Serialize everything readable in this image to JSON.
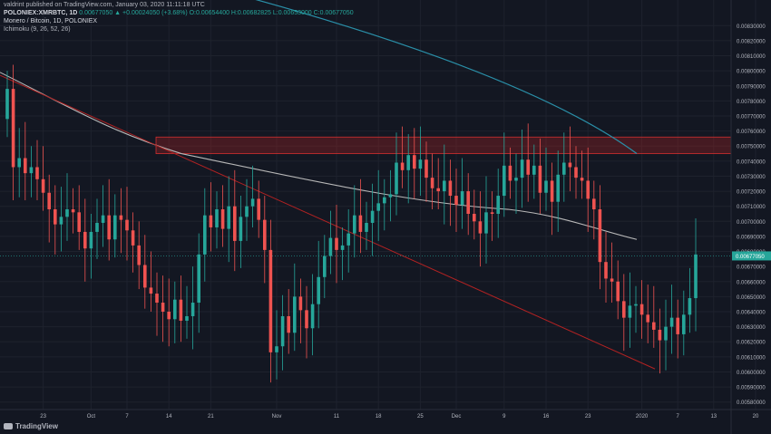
{
  "header": {
    "publish_line": "valdrint published on TradingView.com, January 03, 2020 11:11:18 UTC",
    "symbol_line": "POLONIEX:XMRBTC, 1D",
    "ohlc_line": "0.00677050  ▲ +0.00024050 (+3.68%)  O:0.00654400  H:0.00682825  L:0.00653000  C:0.00677050",
    "name_line": "Monero / Bitcoin, 1D, POLONIEX",
    "indicator_line": "Ichimoku (9, 26, 52, 26)"
  },
  "branding": {
    "logo_text": "TradingView"
  },
  "colors": {
    "background": "#131722",
    "grid": "#1e222d",
    "up": "#26a69a",
    "down": "#ef5350",
    "ma_long": "#2a8fa8",
    "ma_short": "#b8b8b8",
    "trendline": "#b22222",
    "zone_fill": "rgba(178,34,34,0.32)",
    "zone_border": "#d03030",
    "axis_text": "#b2b5be",
    "price_tag": "#26a69a"
  },
  "chart_data": {
    "type": "candlestick",
    "symbol": "POLONIEX:XMRBTC",
    "timeframe": "1D",
    "y_range": [
      0.00575,
      0.00835
    ],
    "y_ticks": [
      "0.00830000",
      "0.00820000",
      "0.00810000",
      "0.00800000",
      "0.00790000",
      "0.00780000",
      "0.00770000",
      "0.00760000",
      "0.00750000",
      "0.00740000",
      "0.00730000",
      "0.00720000",
      "0.00710000",
      "0.00700000",
      "0.00690000",
      "0.00680000",
      "0.00670000",
      "0.00660000",
      "0.00650000",
      "0.00640000",
      "0.00630000",
      "0.00620000",
      "0.00610000",
      "0.00600000",
      "0.00590000",
      "0.00580000"
    ],
    "x_ticks": [
      {
        "label": "23",
        "date": "2019-09-23"
      },
      {
        "label": "Oct",
        "date": "2019-10-01"
      },
      {
        "label": "7",
        "date": "2019-10-07"
      },
      {
        "label": "14",
        "date": "2019-10-14"
      },
      {
        "label": "21",
        "date": "2019-10-21"
      },
      {
        "label": "Nov",
        "date": "2019-11-01"
      },
      {
        "label": "11",
        "date": "2019-11-11"
      },
      {
        "label": "18",
        "date": "2019-11-18"
      },
      {
        "label": "25",
        "date": "2019-11-25"
      },
      {
        "label": "Dec",
        "date": "2019-12-01"
      },
      {
        "label": "9",
        "date": "2019-12-09"
      },
      {
        "label": "16",
        "date": "2019-12-16"
      },
      {
        "label": "23",
        "date": "2019-12-23"
      },
      {
        "label": "2020",
        "date": "2020-01-01"
      },
      {
        "label": "7",
        "date": "2020-01-07"
      },
      {
        "label": "13",
        "date": "2020-01-13"
      },
      {
        "label": "20",
        "date": "2020-01-20"
      }
    ],
    "last_price": "0.00677050",
    "current_price_tag": "0.00677050",
    "series_ohlc_close": [
      0.00788,
      0.00736,
      0.00742,
      0.00732,
      0.00736,
      0.00728,
      0.00719,
      0.00708,
      0.00698,
      0.00703,
      0.00708,
      0.00706,
      0.00693,
      0.00682,
      0.00693,
      0.00699,
      0.00704,
      0.00688,
      0.00704,
      0.00701,
      0.00694,
      0.00684,
      0.00671,
      0.00656,
      0.00652,
      0.00646,
      0.0064,
      0.00635,
      0.00648,
      0.00634,
      0.00637,
      0.00646,
      0.00678,
      0.00704,
      0.00696,
      0.00708,
      0.00695,
      0.0071,
      0.00687,
      0.00703,
      0.0071,
      0.00715,
      0.00701,
      0.00681,
      0.00613,
      0.00617,
      0.00637,
      0.00626,
      0.0065,
      0.00641,
      0.00629,
      0.00645,
      0.00663,
      0.00677,
      0.00689,
      0.00681,
      0.00684,
      0.00692,
      0.00704,
      0.00693,
      0.00699,
      0.00707,
      0.00712,
      0.00716,
      0.00718,
      0.00739,
      0.00734,
      0.00744,
      0.00735,
      0.00741,
      0.00729,
      0.00722,
      0.0072,
      0.00727,
      0.00717,
      0.00711,
      0.0072,
      0.00705,
      0.007,
      0.00692,
      0.00706,
      0.00705,
      0.00717,
      0.00737,
      0.00727,
      0.00729,
      0.00741,
      0.00731,
      0.00737,
      0.00719,
      0.00727,
      0.00713,
      0.00731,
      0.00739,
      0.00736,
      0.00729,
      0.00727,
      0.00715,
      0.00708,
      0.00673,
      0.00662,
      0.0066,
      0.00647,
      0.00636,
      0.00644,
      0.00645,
      0.00638,
      0.00633,
      0.00628,
      0.00621,
      0.0063,
      0.00636,
      0.00625,
      0.00638,
      0.00649,
      0.00678
    ],
    "series_ohlc": [],
    "moving_average_long": {
      "start": [
        0.00862,
        0.0086
      ],
      "end": [
        0.00745,
        0.00745
      ]
    },
    "moving_average_short": {
      "start": 0.00799,
      "end": 0.00688
    },
    "trendline": {
      "start": 0.00797,
      "end": 0.00602
    },
    "resistance_zone": {
      "top": 0.00756,
      "bottom": 0.00745
    }
  }
}
